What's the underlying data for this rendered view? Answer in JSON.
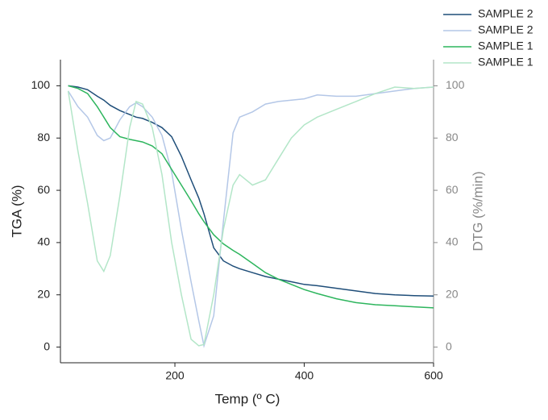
{
  "chart_data": {
    "type": "line",
    "x_label": "Temp (º C)",
    "y_label": "TGA (%)",
    "y2_label": "DTG (%/min)",
    "x": [
      35,
      50,
      65,
      80,
      90,
      100,
      115,
      130,
      140,
      150,
      165,
      180,
      195,
      210,
      225,
      237,
      245,
      260,
      275,
      290,
      300,
      320,
      340,
      360,
      380,
      400,
      420,
      450,
      480,
      510,
      540,
      570,
      600
    ],
    "series": [
      {
        "name": "SAMPLE 2",
        "color": "#1f4e79",
        "axis": "y",
        "values": [
          100,
          99.5,
          98.5,
          96,
          94.5,
          92.5,
          90.5,
          89,
          88,
          87.5,
          86,
          84,
          80.5,
          73,
          64,
          57,
          51,
          38,
          33,
          31,
          30,
          28.5,
          27,
          26,
          25,
          24,
          23.5,
          22.5,
          21.5,
          20.5,
          20,
          19.7,
          19.5
        ]
      },
      {
        "name": "SAMPLE 2",
        "color": "#b4c7e7",
        "axis": "y2",
        "values": [
          98,
          92,
          88,
          81,
          79,
          80,
          87,
          92,
          93.5,
          92,
          88,
          81,
          67,
          45,
          25,
          10,
          0.5,
          12,
          48,
          82,
          88,
          90,
          93,
          94,
          94.5,
          95,
          96.5,
          96,
          96,
          97,
          98,
          99,
          99.5
        ]
      },
      {
        "name": "SAMPLE 1",
        "color": "#2db55d",
        "axis": "y",
        "values": [
          100,
          99,
          97,
          92,
          88,
          84,
          80.5,
          79.5,
          79,
          78.5,
          77,
          74,
          68,
          62,
          56,
          51,
          48,
          43,
          39.5,
          37,
          35.5,
          32,
          28.5,
          26,
          24,
          22,
          20.5,
          18.5,
          17,
          16.2,
          15.8,
          15.4,
          15
        ]
      },
      {
        "name": "SAMPLE 1",
        "color": "#b3e6c8",
        "axis": "y2",
        "values": [
          98,
          75,
          55,
          33,
          29,
          35,
          58,
          84,
          94,
          93,
          84,
          66,
          40,
          20,
          3,
          0.5,
          1,
          20,
          45,
          62,
          66,
          62,
          64,
          72,
          80,
          85,
          88,
          91,
          94,
          97,
          99.5,
          99,
          99.5
        ]
      }
    ],
    "xlim": [
      23,
      600
    ],
    "xticks": [
      200,
      400,
      600
    ],
    "ylim": [
      -6,
      110
    ],
    "yticks": [
      0,
      20,
      40,
      60,
      80,
      100
    ],
    "y2lim": [
      -6,
      110
    ],
    "y2ticks": [
      0,
      20,
      40,
      60,
      80,
      100
    ],
    "legend": "top-right",
    "grid": false
  }
}
